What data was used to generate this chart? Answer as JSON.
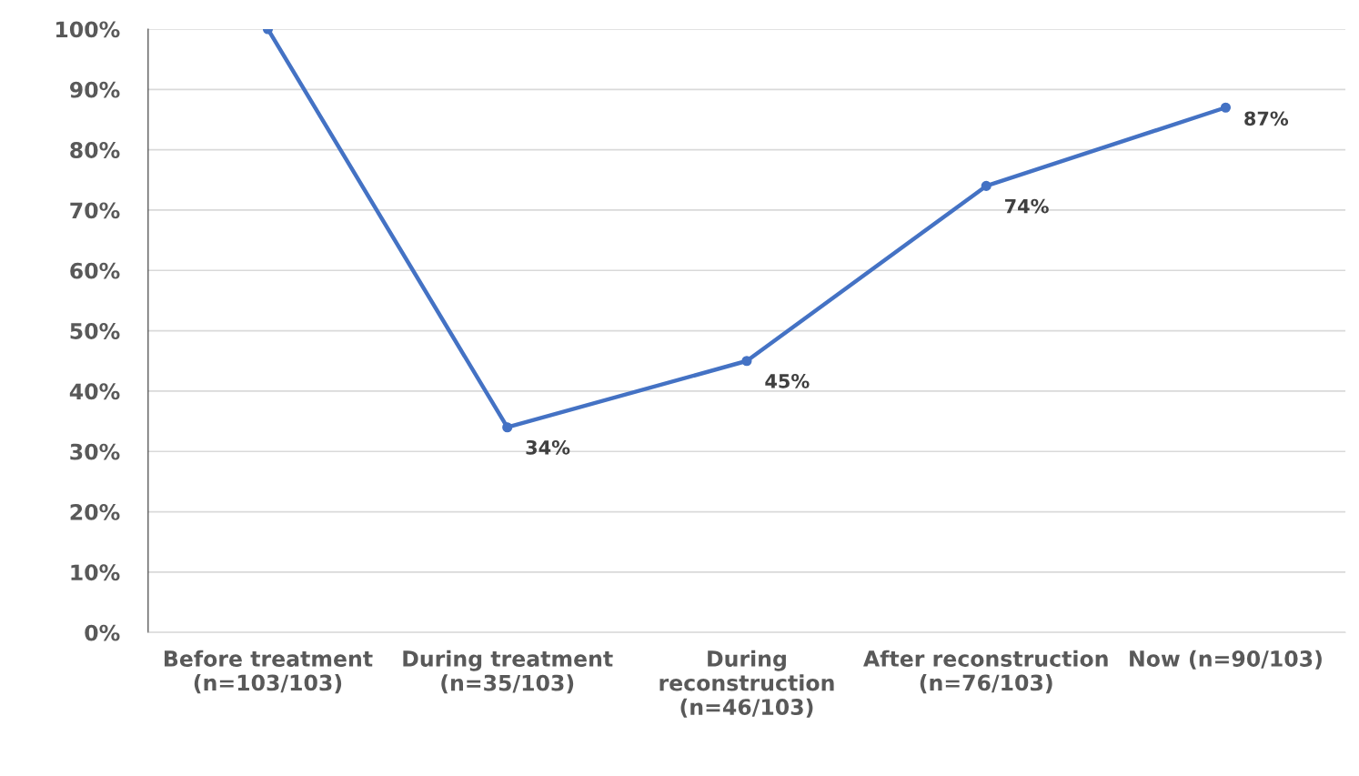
{
  "chart_data": {
    "type": "line",
    "categories": [
      "Before treatment\n(n=103/103)",
      "During treatment\n(n=35/103)",
      "During\nreconstruction\n(n=46/103)",
      "After reconstruction\n(n=76/103)",
      "Now (n=90/103)"
    ],
    "series": [
      {
        "color": "#4472c4",
        "values": [
          100,
          34,
          45,
          74,
          87
        ],
        "value_labels": [
          null,
          "34%",
          "45%",
          "74%",
          "87%"
        ]
      }
    ],
    "ylim": [
      0,
      100
    ],
    "yticks": [
      {
        "value": 0,
        "label": "0%"
      },
      {
        "value": 10,
        "label": "10%"
      },
      {
        "value": 20,
        "label": "20%"
      },
      {
        "value": 30,
        "label": "30%"
      },
      {
        "value": 40,
        "label": "40%"
      },
      {
        "value": 50,
        "label": "50%"
      },
      {
        "value": 60,
        "label": "60%"
      },
      {
        "value": 70,
        "label": "70%"
      },
      {
        "value": 80,
        "label": "80%"
      },
      {
        "value": 90,
        "label": "90%"
      },
      {
        "value": 100,
        "label": "100%"
      }
    ],
    "grid": "y",
    "marker": "circle",
    "line_style": "solid"
  }
}
